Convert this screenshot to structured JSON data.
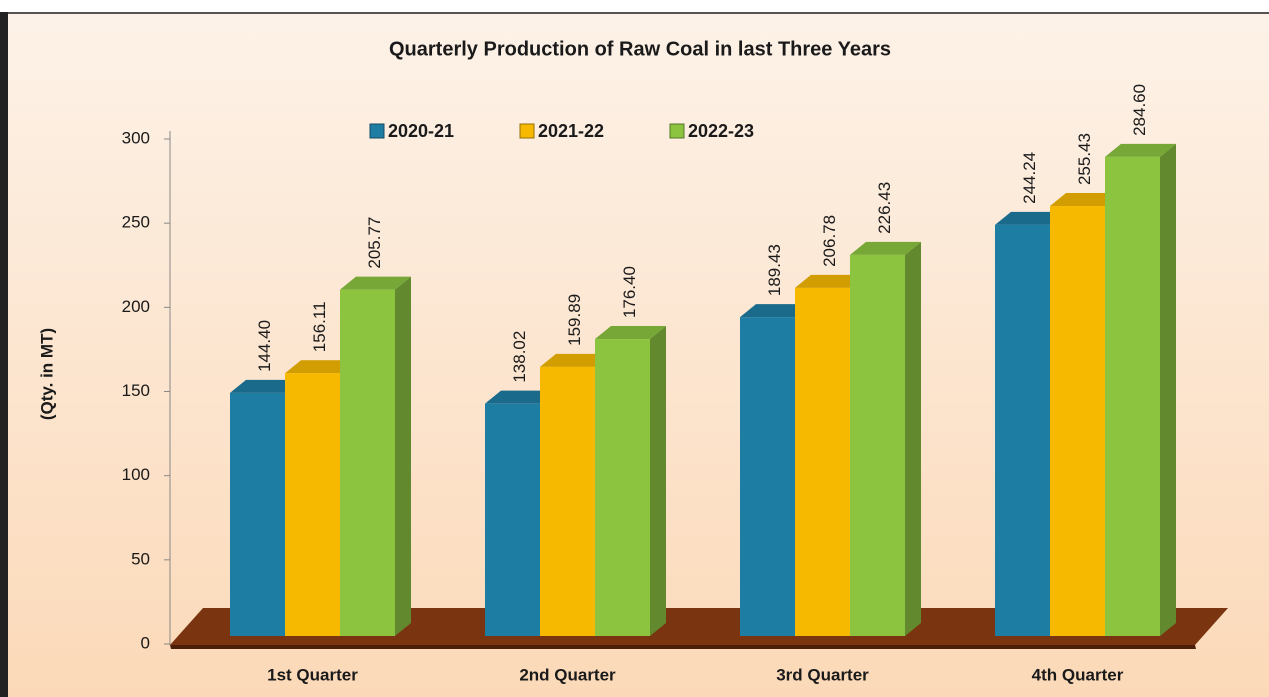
{
  "chart_data": {
    "type": "bar3d",
    "title": "Quarterly Production of Raw Coal in last Three Years",
    "y_label": "(Qty. in MT)",
    "categories": [
      "1st Quarter",
      "2nd Quarter",
      "3rd Quarter",
      "4th Quarter"
    ],
    "series": [
      {
        "name": "2020-21",
        "color": "#1e7da3",
        "values": [
          144.4,
          138.02,
          189.43,
          244.24
        ],
        "value_labels": [
          "144.40",
          "138.02",
          "189.43",
          "244.24"
        ]
      },
      {
        "name": "2021-22",
        "color": "#f7b900",
        "values": [
          156.11,
          159.89,
          206.78,
          255.43
        ],
        "value_labels": [
          "156.11",
          "159.89",
          "206.78",
          "255.43"
        ]
      },
      {
        "name": "2022-23",
        "color": "#8cc440",
        "values": [
          205.77,
          176.4,
          226.43,
          284.6
        ],
        "value_labels": [
          "205.77",
          "176.40",
          "226.43",
          "284.60"
        ]
      }
    ],
    "ylim": [
      0,
      300
    ],
    "yticks": [
      0,
      50,
      100,
      150,
      200,
      250,
      300
    ],
    "legend": "top"
  }
}
